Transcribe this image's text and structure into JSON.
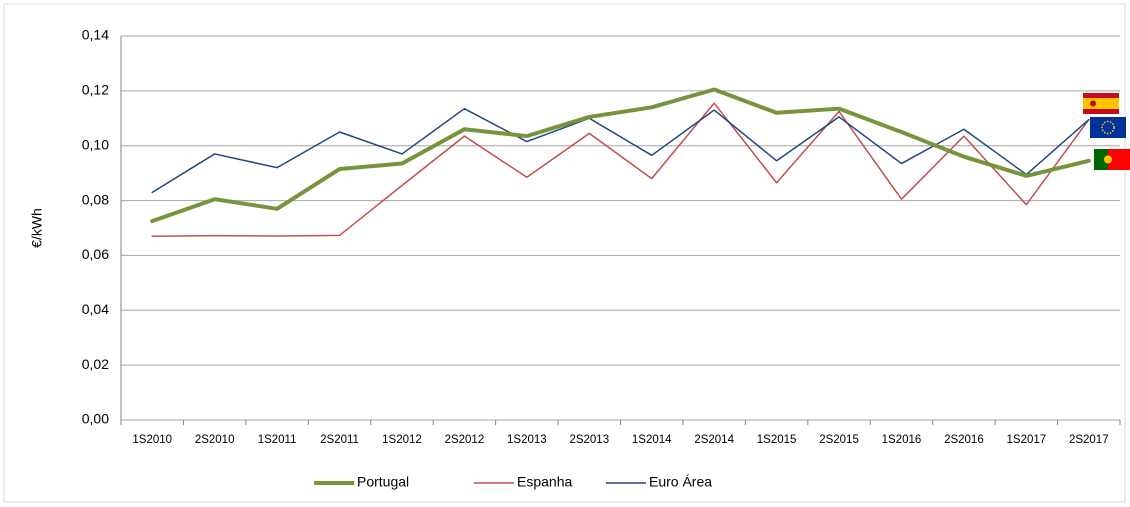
{
  "chart_data": {
    "type": "line",
    "y_label": "€/kWh",
    "categories": [
      "1S2010",
      "2S2010",
      "1S2011",
      "2S2011",
      "1S2012",
      "2S2012",
      "1S2013",
      "2S2013",
      "1S2014",
      "2S2014",
      "1S2015",
      "2S2015",
      "1S2016",
      "2S2016",
      "1S2017",
      "2S2017"
    ],
    "series": [
      {
        "name": "Portugal",
        "color": "#77933c",
        "values": [
          0.0725,
          0.0805,
          0.077,
          0.0915,
          0.0935,
          0.106,
          0.1035,
          0.1105,
          0.114,
          0.1205,
          0.112,
          0.1135,
          0.105,
          0.096,
          0.089,
          0.0945
        ]
      },
      {
        "name": "Espanha",
        "color": "#c0504d",
        "values": [
          0.067,
          0.0672,
          0.0671,
          0.0673,
          0.0855,
          0.1035,
          0.0885,
          0.1045,
          0.088,
          0.1155,
          0.0865,
          0.1125,
          0.0805,
          0.1035,
          0.0785,
          0.1095
        ]
      },
      {
        "name": "Euro Área",
        "color": "#1f497d",
        "values": [
          0.083,
          0.097,
          0.092,
          0.105,
          0.097,
          0.1135,
          0.1015,
          0.11,
          0.0965,
          0.113,
          0.0945,
          0.1105,
          0.0935,
          0.106,
          0.0895,
          0.1095
        ]
      }
    ],
    "ylim": [
      0,
      0.14
    ],
    "yticks": [
      {
        "value": 0,
        "label": "0,00"
      },
      {
        "value": 0.02,
        "label": "0,02"
      },
      {
        "value": 0.04,
        "label": "0,04"
      },
      {
        "value": 0.06,
        "label": "0,06"
      },
      {
        "value": 0.08,
        "label": "0,08"
      },
      {
        "value": 0.1,
        "label": "0,10"
      },
      {
        "value": 0.12,
        "label": "0,12"
      },
      {
        "value": 0.14,
        "label": "0,14"
      }
    ],
    "grid": true,
    "legend": "bottom"
  }
}
